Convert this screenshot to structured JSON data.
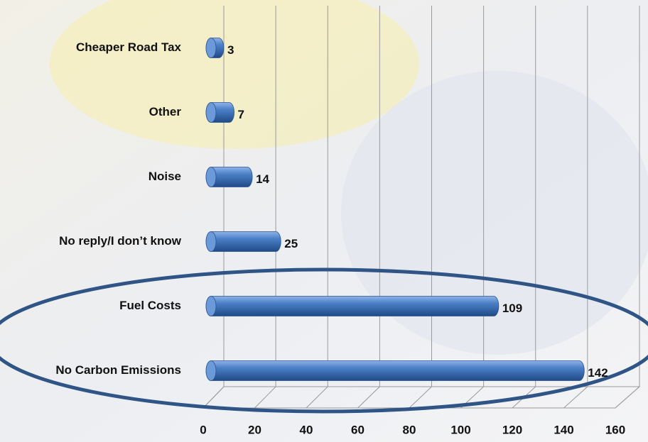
{
  "chart_data": {
    "type": "bar",
    "orientation": "horizontal",
    "categories": [
      "Cheaper Road Tax",
      "Other",
      "Noise",
      "No reply/I don’t know",
      "Fuel Costs",
      "No Carbon Emissions"
    ],
    "values": [
      3,
      7,
      14,
      25,
      109,
      142
    ],
    "color": "#3f74c0",
    "xlim": [
      0,
      160
    ],
    "xticks": [
      0,
      20,
      40,
      60,
      80,
      100,
      120,
      140,
      160
    ],
    "grid": true
  }
}
